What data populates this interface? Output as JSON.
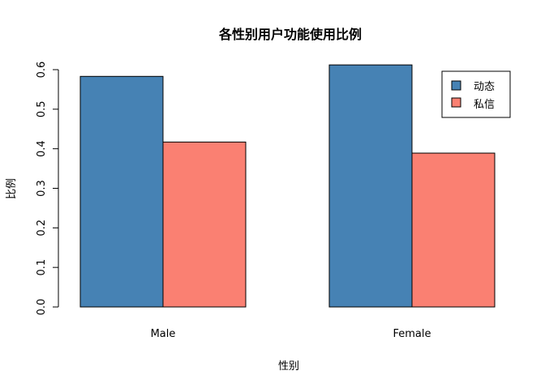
{
  "chart_data": {
    "type": "bar",
    "title": "各性别用户功能使用比例",
    "xlabel": "性别",
    "ylabel": "比例",
    "categories": [
      "Male",
      "Female"
    ],
    "series": [
      {
        "name": "动态",
        "color": "#4682B4",
        "values": [
          0.583,
          0.612
        ]
      },
      {
        "name": "私信",
        "color": "#FA8072",
        "values": [
          0.417,
          0.389
        ]
      }
    ],
    "ylim": [
      0,
      0.6
    ],
    "yticks": [
      "0.0",
      "0.1",
      "0.2",
      "0.3",
      "0.4",
      "0.5",
      "0.6"
    ],
    "grid": false,
    "legend_position": "top-right"
  }
}
